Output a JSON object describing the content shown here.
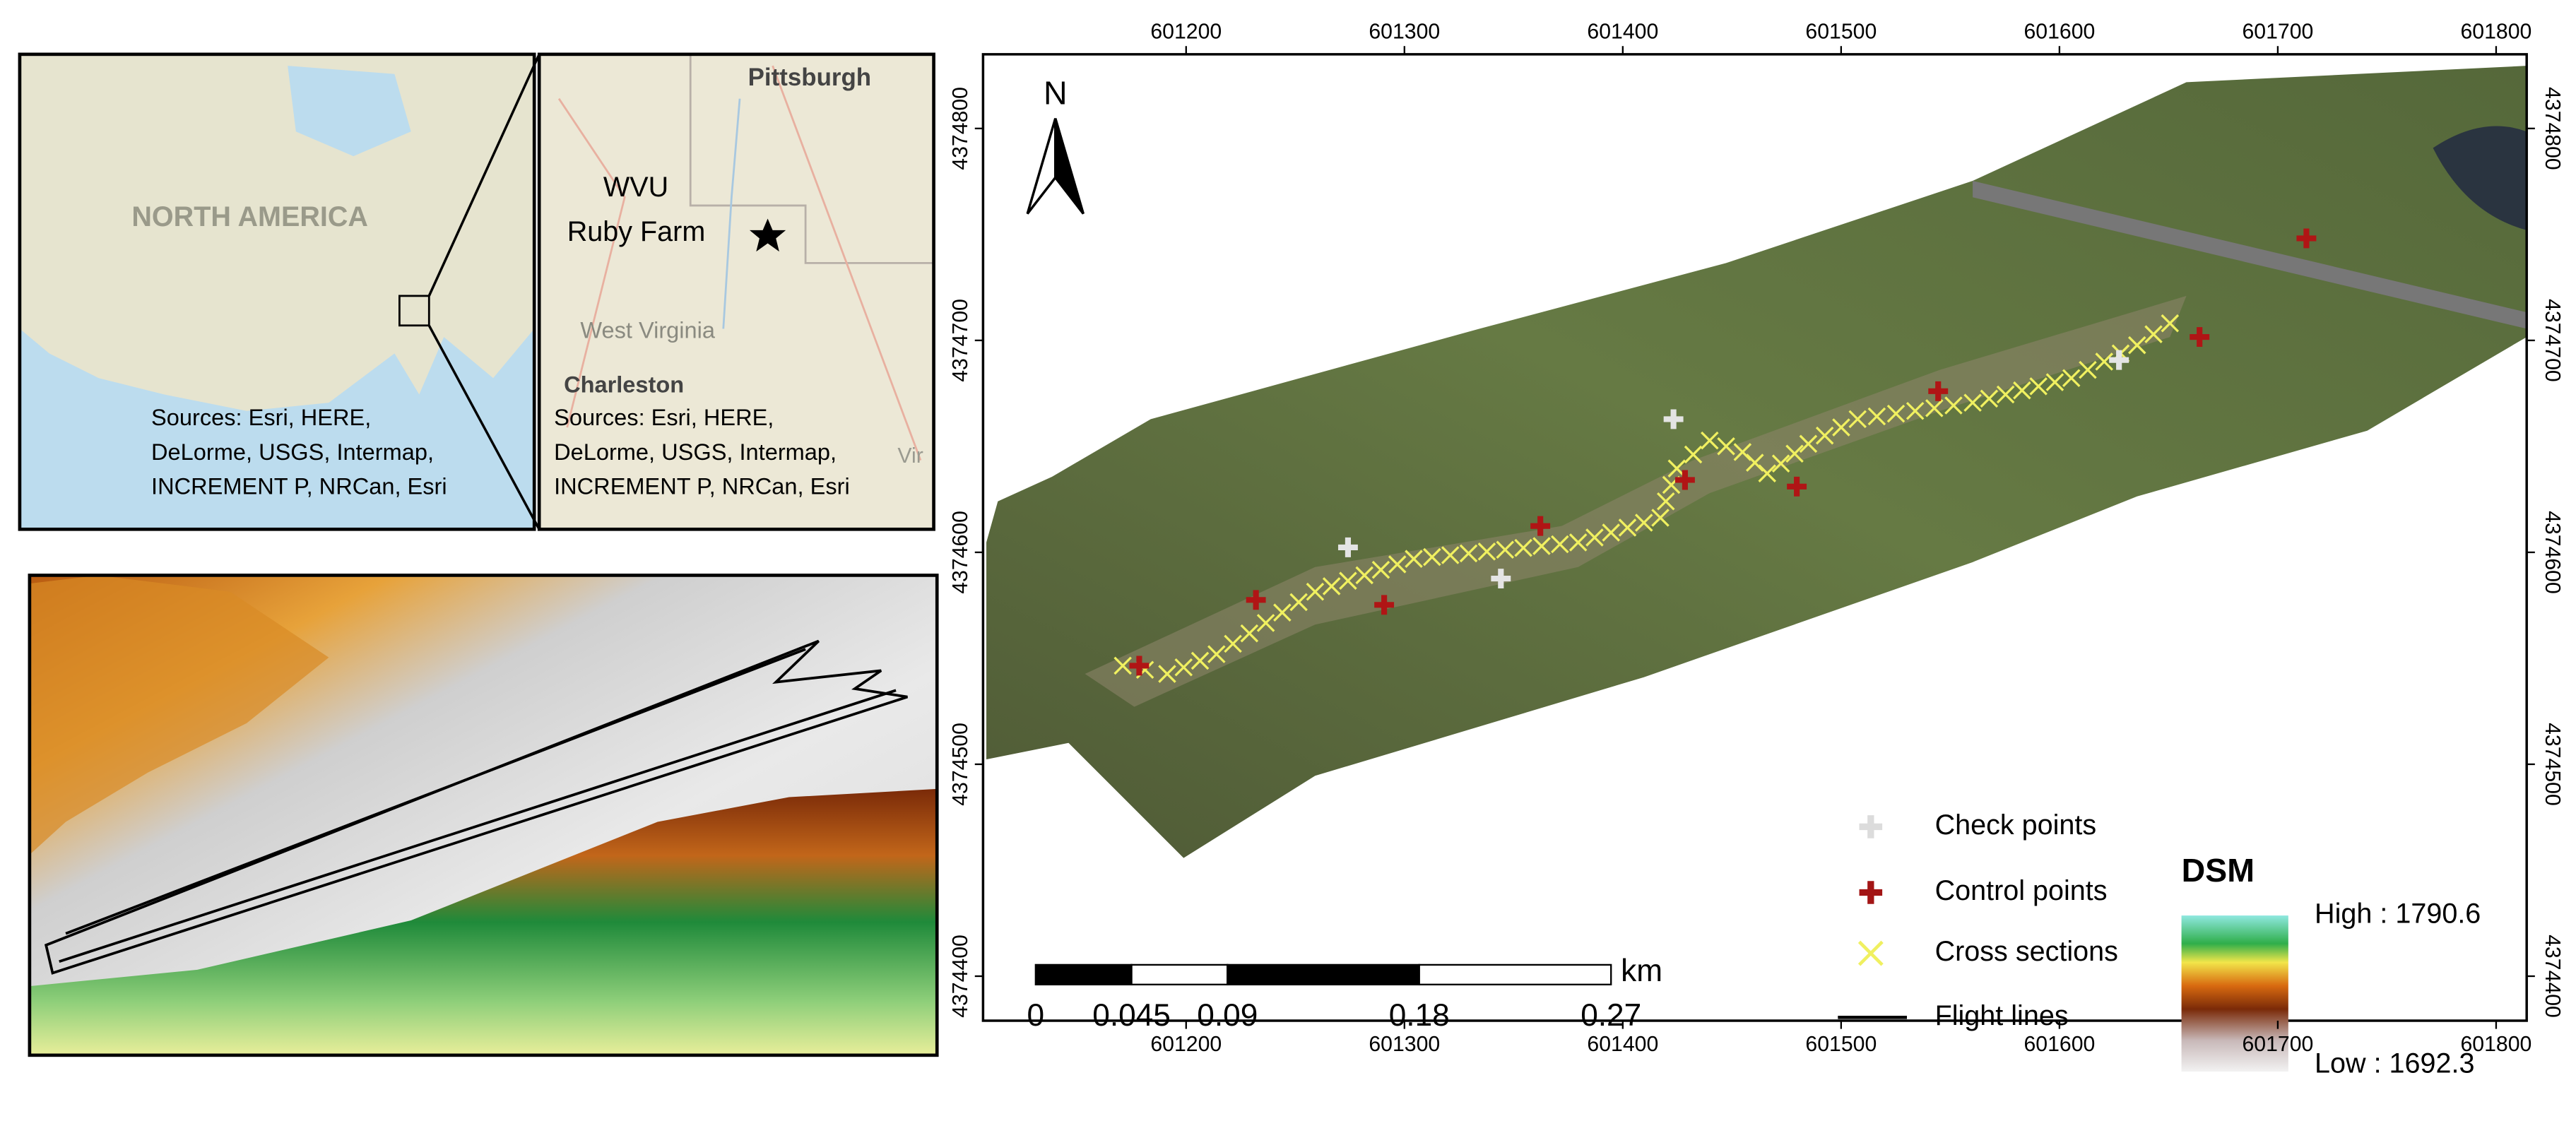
{
  "inset_north_america": {
    "label": "NORTH AMERICA",
    "sources": [
      "Sources: Esri, HERE,",
      "DeLorme, USGS, Intermap,",
      "INCREMENT P, NRCan, Esri"
    ]
  },
  "inset_west_virginia": {
    "places": [
      "Pittsburgh",
      "WVU",
      "Ruby Farm",
      "West Virginia",
      "Charleston",
      "Vir"
    ],
    "sources": [
      "Sources: Esri, HERE,",
      "DeLorme, USGS, Intermap,",
      "INCREMENT P, NRCan, Esri"
    ]
  },
  "main_map": {
    "north_label": "N",
    "xlim": [
      601107,
      601814
    ],
    "xticks": [
      601200,
      601300,
      601400,
      601500,
      601600,
      601700,
      601800
    ],
    "ylim": [
      4374379,
      4374835
    ],
    "yticks": [
      4374400,
      4374500,
      4374600,
      4374700,
      4374800
    ],
    "scale_bar": {
      "ticks": [
        0,
        0.045,
        0.09,
        0.18,
        0.27
      ],
      "unit": "km"
    },
    "legend": {
      "items": [
        "Check points",
        "Control points",
        "Cross sections",
        "Flight lines"
      ],
      "dsm_title": "DSM",
      "high": "High : 1790.6",
      "low": "Low : 1692.3"
    }
  }
}
